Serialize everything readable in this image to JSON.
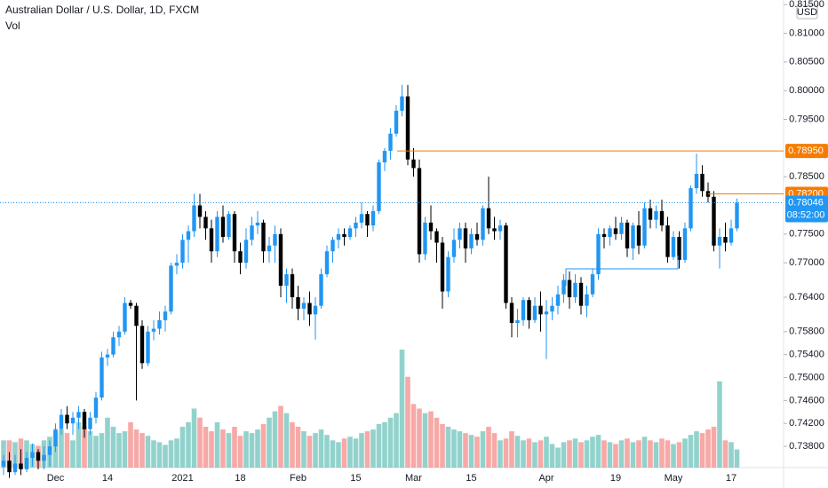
{
  "chart_data": {
    "type": "candlestick",
    "title": "Australian Dollar / U.S. Dollar, 1D, FXCM",
    "subtitle": "Vol",
    "currency": "USD",
    "up_color": "#2196f3",
    "down_color": "#000000",
    "volume_up_color": "rgba(38,166,154,0.5)",
    "volume_down_color": "rgba(239,83,80,0.5)",
    "ylim": [
      0.7343,
      0.8158
    ],
    "yticks": [
      {
        "value": 0.815,
        "label": "0.81500"
      },
      {
        "value": 0.81,
        "label": "0.81000"
      },
      {
        "value": 0.805,
        "label": "0.80500"
      },
      {
        "value": 0.8,
        "label": "0.80000"
      },
      {
        "value": 0.795,
        "label": "0.79500"
      },
      {
        "value": 0.785,
        "label": "0.78500"
      },
      {
        "value": 0.775,
        "label": "0.77500"
      },
      {
        "value": 0.77,
        "label": "0.77000"
      },
      {
        "value": 0.764,
        "label": "0.76400"
      },
      {
        "value": 0.758,
        "label": "0.75800"
      },
      {
        "value": 0.754,
        "label": "0.75400"
      },
      {
        "value": 0.75,
        "label": "0.75000"
      },
      {
        "value": 0.746,
        "label": "0.74600"
      },
      {
        "value": 0.742,
        "label": "0.74200"
      },
      {
        "value": 0.738,
        "label": "0.73800"
      }
    ],
    "price_lines": [
      {
        "value": 0.7895,
        "label": "0.78950",
        "color": "#f57c00"
      },
      {
        "value": 0.782,
        "label": "0.78200",
        "color": "#f57c00"
      }
    ],
    "last_price": {
      "value": 0.78046,
      "label": "0.78046",
      "countdown": "08:52:00",
      "color": "#2196f3"
    },
    "categories": [
      null,
      null,
      null,
      null,
      null,
      null,
      null,
      null,
      null,
      "Dec",
      null,
      null,
      null,
      null,
      null,
      null,
      null,
      null,
      "14",
      null,
      null,
      null,
      null,
      null,
      null,
      null,
      null,
      null,
      null,
      null,
      null,
      "2021",
      null,
      null,
      null,
      null,
      null,
      null,
      null,
      null,
      null,
      "18",
      null,
      null,
      null,
      null,
      null,
      null,
      null,
      null,
      null,
      "Feb",
      null,
      null,
      null,
      null,
      null,
      null,
      null,
      null,
      null,
      "15",
      null,
      null,
      null,
      null,
      null,
      null,
      null,
      null,
      null,
      "Mar",
      null,
      null,
      null,
      null,
      null,
      null,
      null,
      null,
      null,
      "15",
      null,
      null,
      null,
      null,
      null,
      null,
      null,
      null,
      null,
      null,
      null,
      null,
      "Apr",
      null,
      null,
      null,
      null,
      null,
      null,
      null,
      null,
      null,
      null,
      null,
      "19",
      null,
      null,
      null,
      null,
      null,
      null,
      null,
      null,
      null,
      "May",
      null,
      null,
      null,
      null,
      null,
      null,
      null,
      null,
      null,
      "17",
      null
    ],
    "candles": [
      [
        0.7345,
        0.7365,
        0.733,
        0.7355
      ],
      [
        0.7355,
        0.737,
        0.7325,
        0.7335
      ],
      [
        0.7335,
        0.7365,
        0.733,
        0.735
      ],
      [
        0.735,
        0.7375,
        0.733,
        0.734
      ],
      [
        0.734,
        0.737,
        0.7335,
        0.736
      ],
      [
        0.736,
        0.7385,
        0.7345,
        0.737
      ],
      [
        0.737,
        0.7375,
        0.734,
        0.7355
      ],
      [
        0.7355,
        0.738,
        0.734,
        0.7365
      ],
      [
        0.7365,
        0.739,
        0.7345,
        0.738
      ],
      [
        0.738,
        0.742,
        0.737,
        0.741
      ],
      [
        0.741,
        0.7445,
        0.74,
        0.7435
      ],
      [
        0.7435,
        0.745,
        0.741,
        0.742
      ],
      [
        0.742,
        0.744,
        0.74,
        0.743
      ],
      [
        0.743,
        0.745,
        0.741,
        0.744
      ],
      [
        0.744,
        0.7445,
        0.7395,
        0.741
      ],
      [
        0.741,
        0.744,
        0.74,
        0.743
      ],
      [
        0.743,
        0.7475,
        0.742,
        0.7465
      ],
      [
        0.7465,
        0.7545,
        0.746,
        0.7535
      ],
      [
        0.7535,
        0.755,
        0.752,
        0.754
      ],
      [
        0.754,
        0.758,
        0.7535,
        0.757
      ],
      [
        0.757,
        0.759,
        0.7555,
        0.758
      ],
      [
        0.758,
        0.764,
        0.7575,
        0.763
      ],
      [
        0.763,
        0.7635,
        0.762,
        0.7625
      ],
      [
        0.7625,
        0.763,
        0.746,
        0.759
      ],
      [
        0.759,
        0.76,
        0.7515,
        0.7525
      ],
      [
        0.7525,
        0.759,
        0.752,
        0.758
      ],
      [
        0.758,
        0.76,
        0.7565,
        0.7585
      ],
      [
        0.7585,
        0.7615,
        0.7575,
        0.76
      ],
      [
        0.76,
        0.7625,
        0.758,
        0.7615
      ],
      [
        0.7615,
        0.77,
        0.761,
        0.7695
      ],
      [
        0.7695,
        0.7715,
        0.768,
        0.77
      ],
      [
        0.77,
        0.775,
        0.769,
        0.774
      ],
      [
        0.774,
        0.7765,
        0.77,
        0.7755
      ],
      [
        0.7755,
        0.782,
        0.7745,
        0.78
      ],
      [
        0.78,
        0.782,
        0.776,
        0.778
      ],
      [
        0.778,
        0.779,
        0.774,
        0.776
      ],
      [
        0.776,
        0.7775,
        0.77,
        0.772
      ],
      [
        0.772,
        0.779,
        0.771,
        0.778
      ],
      [
        0.778,
        0.78,
        0.7735,
        0.7745
      ],
      [
        0.7745,
        0.779,
        0.774,
        0.7785
      ],
      [
        0.7785,
        0.779,
        0.77,
        0.772
      ],
      [
        0.772,
        0.7735,
        0.768,
        0.77
      ],
      [
        0.77,
        0.776,
        0.769,
        0.774
      ],
      [
        0.774,
        0.778,
        0.773,
        0.7765
      ],
      [
        0.7765,
        0.779,
        0.775,
        0.777
      ],
      [
        0.777,
        0.7775,
        0.77,
        0.772
      ],
      [
        0.772,
        0.7745,
        0.77,
        0.773
      ],
      [
        0.773,
        0.7765,
        0.77,
        0.775
      ],
      [
        0.775,
        0.776,
        0.764,
        0.766
      ],
      [
        0.766,
        0.769,
        0.763,
        0.768
      ],
      [
        0.768,
        0.769,
        0.762,
        0.764
      ],
      [
        0.764,
        0.766,
        0.76,
        0.762
      ],
      [
        0.762,
        0.764,
        0.76,
        0.763
      ],
      [
        0.763,
        0.765,
        0.759,
        0.761
      ],
      [
        0.761,
        0.764,
        0.7566,
        0.7625
      ],
      [
        0.7625,
        0.769,
        0.762,
        0.768
      ],
      [
        0.768,
        0.773,
        0.7675,
        0.772
      ],
      [
        0.772,
        0.7745,
        0.77,
        0.774
      ],
      [
        0.774,
        0.776,
        0.7725,
        0.775
      ],
      [
        0.775,
        0.776,
        0.773,
        0.7745
      ],
      [
        0.7745,
        0.7765,
        0.774,
        0.776
      ],
      [
        0.776,
        0.778,
        0.7745,
        0.777
      ],
      [
        0.777,
        0.7805,
        0.776,
        0.7785
      ],
      [
        0.7785,
        0.779,
        0.7745,
        0.7765
      ],
      [
        0.7765,
        0.78,
        0.7755,
        0.779
      ],
      [
        0.779,
        0.788,
        0.7785,
        0.7875
      ],
      [
        0.7875,
        0.79,
        0.786,
        0.7895
      ],
      [
        0.7895,
        0.7935,
        0.788,
        0.7925
      ],
      [
        0.7925,
        0.7975,
        0.792,
        0.7965
      ],
      [
        0.7965,
        0.801,
        0.7955,
        0.799
      ],
      [
        0.799,
        0.801,
        0.787,
        0.788
      ],
      [
        0.788,
        0.79,
        0.785,
        0.7865
      ],
      [
        0.7865,
        0.788,
        0.77,
        0.7715
      ],
      [
        0.7715,
        0.778,
        0.7705,
        0.777
      ],
      [
        0.777,
        0.78,
        0.774,
        0.7755
      ],
      [
        0.7755,
        0.776,
        0.77,
        0.7735
      ],
      [
        0.7735,
        0.7745,
        0.762,
        0.765
      ],
      [
        0.765,
        0.772,
        0.764,
        0.771
      ],
      [
        0.771,
        0.776,
        0.77,
        0.774
      ],
      [
        0.774,
        0.777,
        0.7725,
        0.776
      ],
      [
        0.776,
        0.777,
        0.77,
        0.7725
      ],
      [
        0.7725,
        0.776,
        0.7715,
        0.775
      ],
      [
        0.775,
        0.777,
        0.773,
        0.774
      ],
      [
        0.774,
        0.78,
        0.773,
        0.7795
      ],
      [
        0.7795,
        0.785,
        0.775,
        0.776
      ],
      [
        0.776,
        0.778,
        0.774,
        0.7755
      ],
      [
        0.7755,
        0.7775,
        0.774,
        0.7765
      ],
      [
        0.7765,
        0.777,
        0.762,
        0.763
      ],
      [
        0.763,
        0.764,
        0.757,
        0.7595
      ],
      [
        0.7595,
        0.762,
        0.757,
        0.76
      ],
      [
        0.76,
        0.764,
        0.759,
        0.7635
      ],
      [
        0.7635,
        0.764,
        0.7585,
        0.76
      ],
      [
        0.76,
        0.764,
        0.7595,
        0.7625
      ],
      [
        0.7625,
        0.765,
        0.758,
        0.761
      ],
      [
        0.761,
        0.7635,
        0.7532,
        0.7615
      ],
      [
        0.7615,
        0.764,
        0.76,
        0.7625
      ],
      [
        0.7625,
        0.766,
        0.761,
        0.7645
      ],
      [
        0.7645,
        0.768,
        0.763,
        0.767
      ],
      [
        0.767,
        0.7685,
        0.762,
        0.764
      ],
      [
        0.764,
        0.768,
        0.763,
        0.7665
      ],
      [
        0.7665,
        0.7675,
        0.761,
        0.7625
      ],
      [
        0.7625,
        0.766,
        0.7605,
        0.7645
      ],
      [
        0.7645,
        0.769,
        0.764,
        0.768
      ],
      [
        0.768,
        0.776,
        0.767,
        0.775
      ],
      [
        0.775,
        0.776,
        0.7725,
        0.7745
      ],
      [
        0.7745,
        0.7765,
        0.773,
        0.776
      ],
      [
        0.776,
        0.778,
        0.774,
        0.775
      ],
      [
        0.775,
        0.778,
        0.774,
        0.777
      ],
      [
        0.777,
        0.7775,
        0.771,
        0.7725
      ],
      [
        0.7725,
        0.777,
        0.7705,
        0.7765
      ],
      [
        0.7765,
        0.779,
        0.7715,
        0.773
      ],
      [
        0.773,
        0.7805,
        0.7725,
        0.7795
      ],
      [
        0.7795,
        0.781,
        0.776,
        0.7775
      ],
      [
        0.7775,
        0.78,
        0.776,
        0.779
      ],
      [
        0.779,
        0.781,
        0.7755,
        0.7765
      ],
      [
        0.7765,
        0.778,
        0.77,
        0.771
      ],
      [
        0.771,
        0.7755,
        0.7705,
        0.7745
      ],
      [
        0.7745,
        0.7755,
        0.769,
        0.7705
      ],
      [
        0.7705,
        0.777,
        0.77,
        0.776
      ],
      [
        0.776,
        0.7835,
        0.7755,
        0.783
      ],
      [
        0.783,
        0.789,
        0.782,
        0.7855
      ],
      [
        0.7855,
        0.787,
        0.7815,
        0.7825
      ],
      [
        0.7825,
        0.784,
        0.7805,
        0.7815
      ],
      [
        0.7815,
        0.7825,
        0.772,
        0.773
      ],
      [
        0.773,
        0.776,
        0.769,
        0.7745
      ],
      [
        0.7745,
        0.777,
        0.772,
        0.7735
      ],
      [
        0.7735,
        0.7775,
        0.773,
        0.776
      ],
      [
        0.776,
        0.7812,
        0.7755,
        0.78046
      ]
    ],
    "volume": [
      30,
      30,
      28,
      32,
      30,
      26,
      24,
      30,
      34,
      40,
      42,
      38,
      30,
      50,
      45,
      40,
      35,
      38,
      55,
      45,
      38,
      40,
      50,
      42,
      38,
      35,
      30,
      28,
      25,
      30,
      32,
      45,
      50,
      65,
      55,
      45,
      40,
      50,
      42,
      38,
      45,
      35,
      40,
      38,
      42,
      48,
      55,
      62,
      68,
      60,
      50,
      45,
      40,
      35,
      38,
      42,
      36,
      30,
      28,
      32,
      34,
      32,
      38,
      40,
      42,
      48,
      50,
      55,
      60,
      130,
      100,
      70,
      65,
      60,
      62,
      55,
      48,
      45,
      42,
      40,
      38,
      36,
      34,
      40,
      45,
      38,
      30,
      32,
      40,
      35,
      30,
      32,
      28,
      30,
      34,
      26,
      22,
      28,
      30,
      32,
      28,
      30,
      34,
      36,
      30,
      28,
      26,
      30,
      32,
      28,
      30,
      34,
      30,
      28,
      32,
      30,
      26,
      28,
      32,
      36,
      40,
      38,
      42,
      45,
      95,
      30,
      28,
      20
    ]
  }
}
